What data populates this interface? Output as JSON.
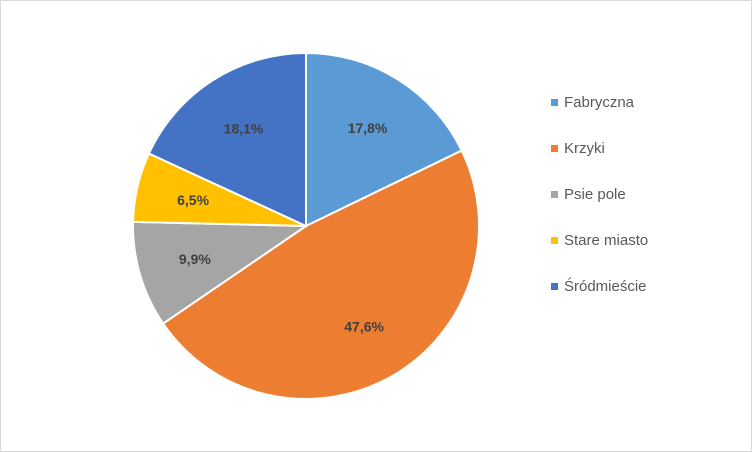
{
  "chart_data": {
    "type": "pie",
    "title": "",
    "categories": [
      "Fabryczna",
      "Krzyki",
      "Psie pole",
      "Stare miasto",
      "Śródmieście"
    ],
    "values": [
      17.8,
      47.6,
      9.9,
      6.5,
      18.1
    ],
    "value_labels": [
      "17,8%",
      "47,6%",
      "9,9%",
      "6,5%",
      "18,1%"
    ],
    "unit": "%",
    "colors": [
      "#5B9BD5",
      "#ED7D31",
      "#A5A5A5",
      "#FFC000",
      "#4472C4"
    ],
    "start_angle": "12 o'clock",
    "direction": "clockwise",
    "legend_placement": "right"
  }
}
